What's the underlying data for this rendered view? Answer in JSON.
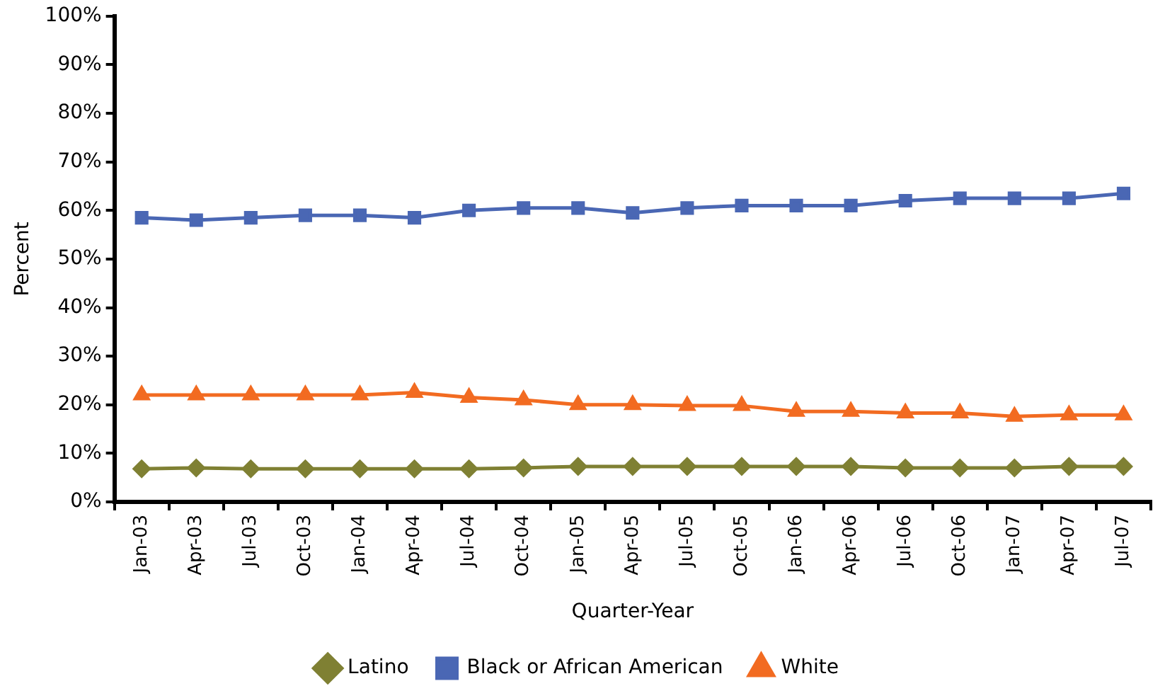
{
  "chart_data": {
    "type": "line",
    "xlabel": "Quarter-Year",
    "ylabel": "Percent",
    "categories": [
      "Jan-03",
      "Apr-03",
      "Jul-03",
      "Oct-03",
      "Jan-04",
      "Apr-04",
      "Jul-04",
      "Oct-04",
      "Jan-05",
      "Apr-05",
      "Jul-05",
      "Oct-05",
      "Jan-06",
      "Apr-06",
      "Jul-06",
      "Oct-06",
      "Jan-07",
      "Apr-07",
      "Jul-07"
    ],
    "series": [
      {
        "name": "Latino",
        "color": "#7f8033",
        "marker": "diamond",
        "values": [
          6.8,
          7,
          6.8,
          6.8,
          6.8,
          6.8,
          6.8,
          7,
          7.3,
          7.3,
          7.3,
          7.3,
          7.3,
          7.3,
          7,
          7,
          7,
          7.3,
          7.3
        ]
      },
      {
        "name": "Black or African American",
        "color": "#4a67b4",
        "marker": "square",
        "values": [
          58.5,
          58,
          58.5,
          59,
          59,
          58.5,
          60,
          60.5,
          60.5,
          59.5,
          60.5,
          61,
          61,
          61,
          62,
          62.5,
          62.5,
          62.5,
          63.5
        ]
      },
      {
        "name": "White",
        "color": "#f26b21",
        "marker": "triangle",
        "values": [
          22,
          22,
          22,
          22,
          22,
          22.5,
          21.5,
          21,
          20,
          20,
          19.8,
          19.8,
          18.6,
          18.6,
          18.3,
          18.3,
          17.6,
          17.9,
          17.9
        ]
      }
    ],
    "ylim": [
      0,
      100
    ],
    "yticks": [
      {
        "value": 0,
        "label": "0%"
      },
      {
        "value": 10,
        "label": "10%"
      },
      {
        "value": 20,
        "label": "20%"
      },
      {
        "value": 30,
        "label": "30%"
      },
      {
        "value": 40,
        "label": "40%"
      },
      {
        "value": 50,
        "label": "50%"
      },
      {
        "value": 60,
        "label": "60%"
      },
      {
        "value": 70,
        "label": "70%"
      },
      {
        "value": 80,
        "label": "80%"
      },
      {
        "value": 90,
        "label": "90%"
      },
      {
        "value": 100,
        "label": "100%"
      }
    ],
    "grid": false,
    "legend": "bottom",
    "line_style": "solid"
  }
}
